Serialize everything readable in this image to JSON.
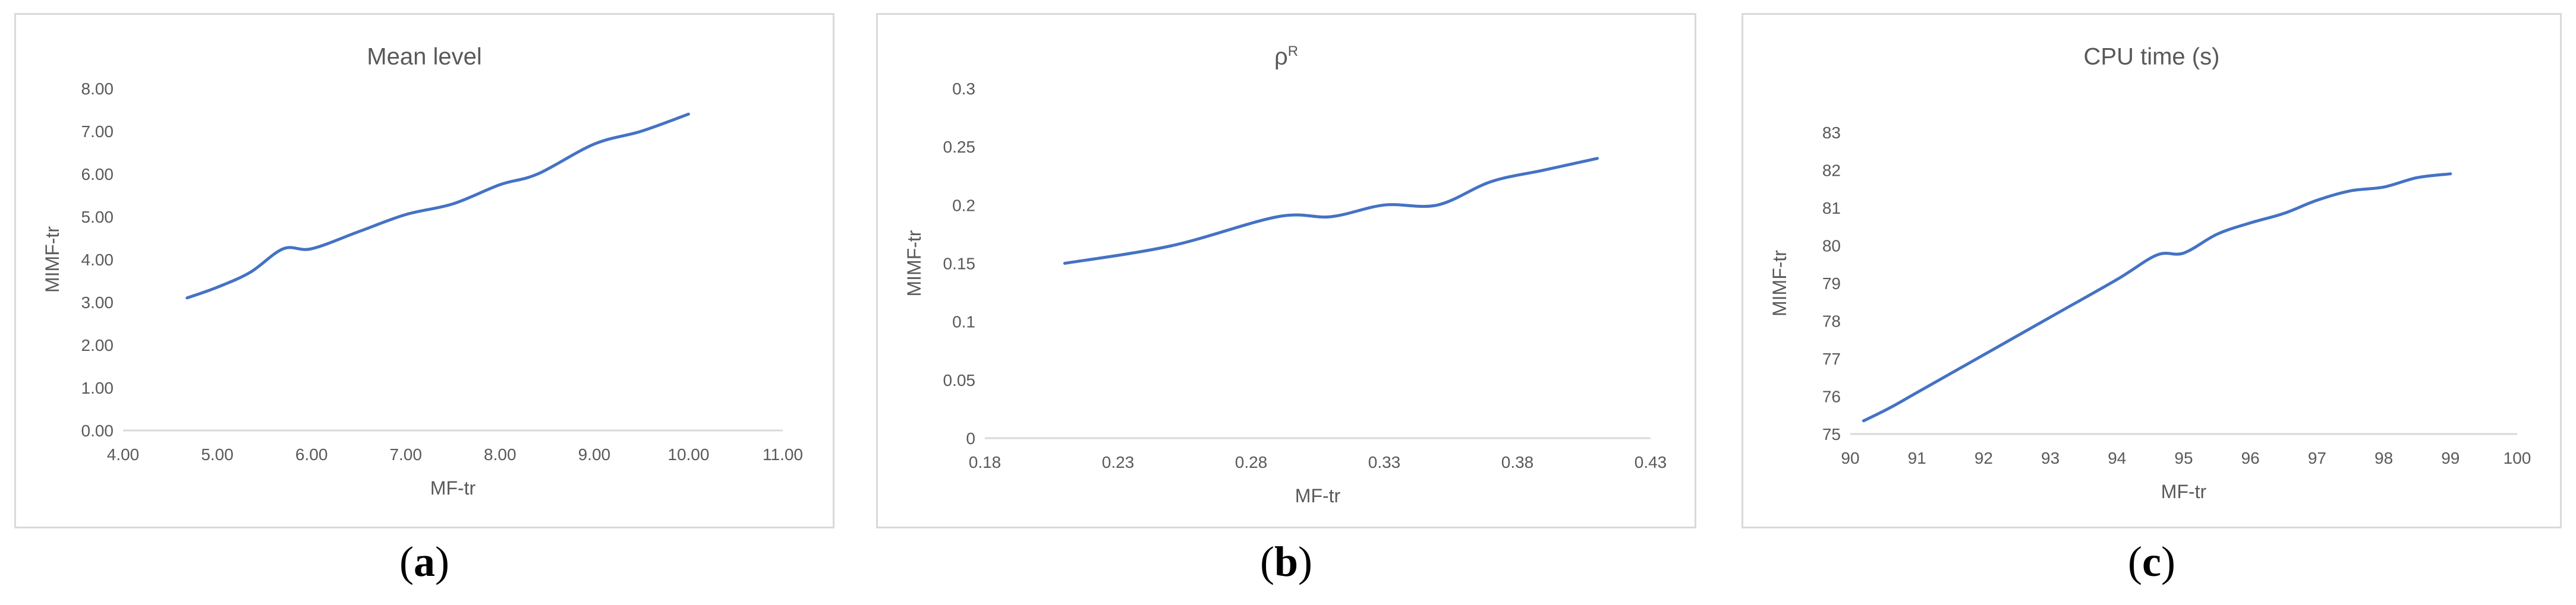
{
  "chart_data": [
    {
      "type": "line",
      "title": "Mean  level",
      "title_sup": "",
      "xlabel": "MF-tr",
      "ylabel": "MIMF-tr",
      "xlim": [
        4,
        11
      ],
      "ylim": [
        0,
        8
      ],
      "xticks": [
        "4.00",
        "5.00",
        "6.00",
        "7.00",
        "8.00",
        "9.00",
        "10.00",
        "11.00"
      ],
      "yticks": [
        "0.00",
        "1.00",
        "2.00",
        "3.00",
        "4.00",
        "5.00",
        "6.00",
        "7.00",
        "8.00"
      ],
      "xtick_values": [
        4,
        5,
        6,
        7,
        8,
        9,
        10,
        11
      ],
      "ytick_values": [
        0,
        1,
        2,
        3,
        4,
        5,
        6,
        7,
        8
      ],
      "caption": "a",
      "color": "#4472c4",
      "series": [
        {
          "x": [
            4.68,
            5.0,
            5.35,
            5.7,
            6.0,
            6.5,
            7.0,
            7.5,
            8.0,
            8.4,
            9.0,
            9.5,
            10.0
          ],
          "y": [
            3.1,
            3.35,
            3.7,
            4.25,
            4.25,
            4.65,
            5.05,
            5.3,
            5.75,
            6.0,
            6.7,
            7.0,
            7.4
          ]
        }
      ]
    },
    {
      "type": "line",
      "title": "ρ",
      "title_sup": "R",
      "xlabel": "MF-tr",
      "ylabel": "MIMF-tr",
      "xlim": [
        0.18,
        0.43
      ],
      "ylim": [
        0,
        0.3
      ],
      "xticks": [
        "0.18",
        "0.23",
        "0.28",
        "0.33",
        "0.38",
        "0.43"
      ],
      "yticks": [
        "0",
        "0.05",
        "0.1",
        "0.15",
        "0.2",
        "0.25",
        "0.3"
      ],
      "xtick_values": [
        0.18,
        0.23,
        0.28,
        0.33,
        0.38,
        0.43
      ],
      "ytick_values": [
        0,
        0.05,
        0.1,
        0.15,
        0.2,
        0.25,
        0.3
      ],
      "caption": "b",
      "color": "#4472c4",
      "series": [
        {
          "x": [
            0.21,
            0.25,
            0.29,
            0.31,
            0.33,
            0.35,
            0.37,
            0.39,
            0.41
          ],
          "y": [
            0.15,
            0.165,
            0.19,
            0.19,
            0.2,
            0.2,
            0.22,
            0.23,
            0.24
          ]
        }
      ]
    },
    {
      "type": "line",
      "title": "CPU time (s)",
      "title_sup": "",
      "xlabel": "MF-tr",
      "ylabel": "MIMF-tr",
      "xlim": [
        90,
        100
      ],
      "ylim": [
        75,
        83
      ],
      "xticks": [
        "90",
        "91",
        "92",
        "93",
        "94",
        "95",
        "96",
        "97",
        "98",
        "99",
        "100"
      ],
      "yticks": [
        "75",
        "76",
        "77",
        "78",
        "79",
        "80",
        "81",
        "82",
        "83"
      ],
      "xtick_values": [
        90,
        91,
        92,
        93,
        94,
        95,
        96,
        97,
        98,
        99,
        100
      ],
      "ytick_values": [
        75,
        76,
        77,
        78,
        79,
        80,
        81,
        82,
        83
      ],
      "caption": "c",
      "color": "#4472c4",
      "series": [
        {
          "x": [
            90.2,
            90.6,
            91.0,
            92.0,
            93.0,
            94.0,
            94.6,
            95.0,
            95.5,
            96.0,
            96.5,
            97.0,
            97.5,
            98.0,
            98.5,
            99.0
          ],
          "y": [
            75.35,
            75.7,
            76.1,
            77.1,
            78.1,
            79.1,
            79.75,
            79.8,
            80.3,
            80.6,
            80.85,
            81.2,
            81.45,
            81.55,
            81.8,
            81.9
          ]
        }
      ]
    }
  ]
}
